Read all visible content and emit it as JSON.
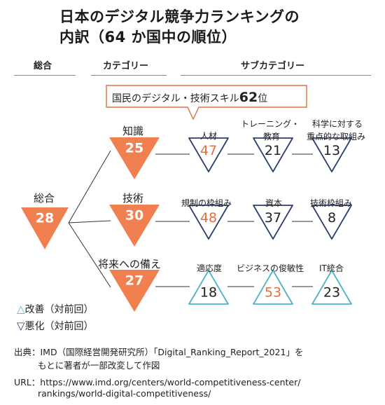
{
  "title": {
    "line1": "日本のデジタル競争力ランキングの",
    "line2": "内訳（64 か国中の順位）"
  },
  "headers": {
    "overall": "総合",
    "category": "カテゴリー",
    "subcategory": "サブカテゴリー"
  },
  "callout": {
    "text": "国民のデジタル・技術スキル",
    "rank": "62",
    "suffix": "位"
  },
  "overall": {
    "label": "総合",
    "rank": "28"
  },
  "categories": [
    {
      "label": "知識",
      "rank": "25",
      "subs": [
        {
          "label": "人材",
          "rank": "47",
          "trend": "down",
          "highlight": true
        },
        {
          "label": "教育",
          "label_top": "トレーニング・",
          "rank": "21",
          "trend": "down",
          "highlight": false
        },
        {
          "label": "重点的な取組み",
          "label_top": "科学に対する",
          "rank": "13",
          "trend": "down",
          "highlight": false
        }
      ]
    },
    {
      "label": "技術",
      "rank": "30",
      "subs": [
        {
          "label": "規制の枠組み",
          "rank": "48",
          "trend": "down",
          "highlight": true
        },
        {
          "label": "資本",
          "rank": "37",
          "trend": "down",
          "highlight": false
        },
        {
          "label": "技術枠組み",
          "rank": "8",
          "trend": "down",
          "highlight": false
        }
      ]
    },
    {
      "label": "将来への備え",
      "rank": "27",
      "subs": [
        {
          "label": "適応度",
          "rank": "18",
          "trend": "up",
          "highlight": false
        },
        {
          "label": "ビジネスの俊敏性",
          "rank": "53",
          "trend": "up",
          "highlight": true
        },
        {
          "label": "IT統合",
          "rank": "23",
          "trend": "up",
          "highlight": false
        }
      ]
    }
  ],
  "legend": {
    "up_symbol": "△",
    "up": "改善（対前回）",
    "down_symbol": "▽",
    "down": "悪化（対前回）"
  },
  "footer": {
    "source_line1": "出典：IMD（国際経営開発研究所）「Digital_Ranking_Report_2021」を",
    "source_line2": "もとに著者が一部改変して作図",
    "url_line1": "URL：https://www.imd.org/centers/world-competitiveness-center/",
    "url_line2": "rankings/world-digital-competitiveness/"
  },
  "colors": {
    "orange": "#f0804f",
    "navy": "#2c3f70",
    "teal": "#4cb3c9",
    "rule": "#e0703d",
    "highlight_text": "#e0703d"
  }
}
